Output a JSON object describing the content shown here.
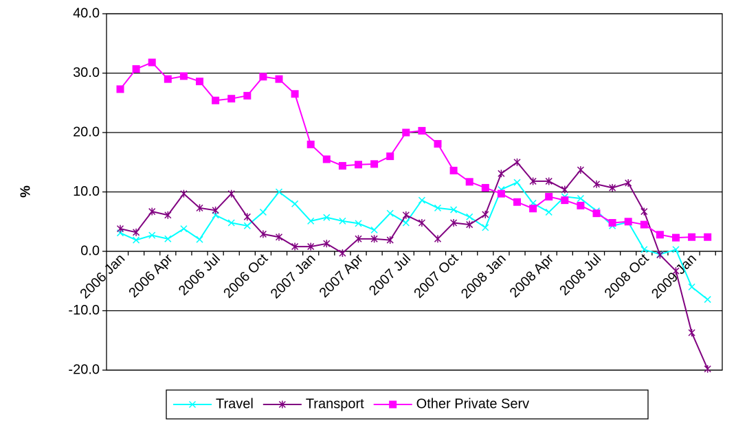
{
  "chart_data": {
    "type": "line",
    "ylabel": "%",
    "categories": [
      "2006 Jan",
      null,
      null,
      "2006 Apr",
      null,
      null,
      "2006 Jul",
      null,
      null,
      "2006 Oct",
      null,
      null,
      "2007 Jan",
      null,
      null,
      "2007 Apr",
      null,
      null,
      "2007 Jul",
      null,
      null,
      "2007 Oct",
      null,
      null,
      "2008 Jan",
      null,
      null,
      "2008 Apr",
      null,
      null,
      "2008 Jul",
      null,
      null,
      "2008 Oct",
      null,
      null,
      "2009 Jan",
      null
    ],
    "series": [
      {
        "name": "Travel",
        "color": "#00ffff",
        "marker": "x",
        "values": [
          3.1,
          1.9,
          2.7,
          2.1,
          3.8,
          2.0,
          6.1,
          4.8,
          4.3,
          6.6,
          10.0,
          8.0,
          5.1,
          5.7,
          5.1,
          4.7,
          3.6,
          6.4,
          4.8,
          8.6,
          7.3,
          7.0,
          5.8,
          4.0,
          10.4,
          11.6,
          8.1,
          6.6,
          9.2,
          8.9,
          6.8,
          4.3,
          4.9,
          0.3,
          -0.5,
          0.3,
          -6.0,
          -8.1
        ]
      },
      {
        "name": "Transport",
        "color": "#800080",
        "marker": "star",
        "values": [
          3.8,
          3.2,
          6.7,
          6.1,
          9.7,
          7.3,
          6.9,
          9.7,
          5.8,
          2.9,
          2.4,
          0.8,
          0.8,
          1.3,
          -0.3,
          2.1,
          2.1,
          1.9,
          6.1,
          4.8,
          2.1,
          4.8,
          4.5,
          6.2,
          13.1,
          15.0,
          11.8,
          11.8,
          10.4,
          13.7,
          11.3,
          10.7,
          11.5,
          6.7,
          -0.6,
          -3.3,
          -13.7,
          -19.8
        ]
      },
      {
        "name": "Other Private Serv",
        "color": "#ff00ff",
        "marker": "square",
        "values": [
          27.3,
          30.7,
          31.8,
          29.0,
          29.5,
          28.6,
          25.4,
          25.7,
          26.2,
          29.4,
          29.0,
          26.5,
          18.0,
          15.5,
          14.4,
          14.6,
          14.7,
          16.0,
          20.0,
          20.3,
          18.1,
          13.6,
          11.7,
          10.7,
          9.7,
          8.3,
          7.2,
          9.2,
          8.6,
          7.7,
          6.4,
          4.8,
          5.0,
          4.5,
          2.8,
          2.3,
          2.4,
          2.4
        ]
      }
    ],
    "ylim": [
      -20,
      40
    ],
    "yticks": [
      {
        "value": -20,
        "label": "-20.0"
      },
      {
        "value": -10,
        "label": "-10.0"
      },
      {
        "value": 0,
        "label": "0.0"
      },
      {
        "value": 10,
        "label": "10.0"
      },
      {
        "value": 20,
        "label": "20.0"
      },
      {
        "value": 30,
        "label": "30.0"
      },
      {
        "value": 40,
        "label": "40.0"
      }
    ],
    "grid": true,
    "legend": "bottom"
  }
}
